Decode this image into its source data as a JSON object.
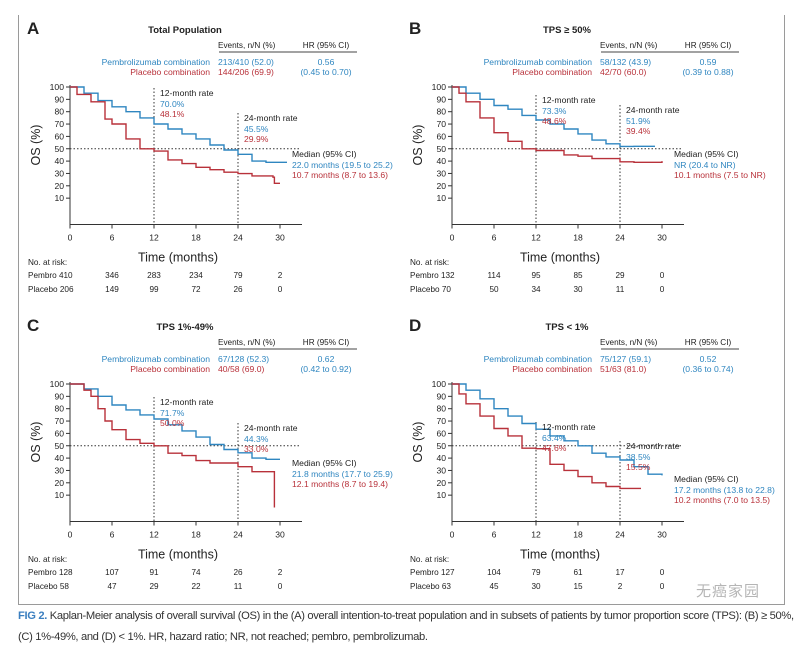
{
  "colors": {
    "pembro": "#2f86c0",
    "placebo": "#b8313a",
    "text": "#222222",
    "fig_label": "#3b7fc0"
  },
  "chart_data": [
    {
      "type": "line",
      "subtype": "kaplan-meier",
      "panel": "A",
      "title": "Total Population",
      "xlabel": "Time (months)",
      "ylabel": "OS (%)",
      "xlim": [
        0,
        30
      ],
      "ylim": [
        0,
        100
      ],
      "xticks": [
        "0",
        "6",
        "12",
        "18",
        "24",
        "30"
      ],
      "yticks": [
        "100",
        "90",
        "80",
        "70",
        "60",
        "50",
        "40",
        "30",
        "20",
        "10"
      ],
      "table_header": {
        "events": "Events, n/N (%)",
        "hr": "HR (95% CI)"
      },
      "series": [
        {
          "name": "Pembrolizumab combination",
          "events": "213/410 (52.0)",
          "hr": "0.56",
          "x": [
            0,
            2,
            4,
            6,
            8,
            10,
            12,
            14,
            16,
            18,
            20,
            22,
            24,
            26,
            28,
            31
          ],
          "y": [
            100,
            95,
            89,
            84,
            80,
            75,
            70,
            66,
            62,
            58,
            53,
            49,
            45.5,
            40,
            39,
            39
          ]
        },
        {
          "name": "Placebo combination",
          "events": "144/206 (69.9)",
          "hr": "(0.45 to 0.70)",
          "x": [
            0,
            1,
            3,
            5,
            6,
            8,
            10,
            12,
            14,
            16,
            18,
            20,
            22,
            24,
            26,
            29,
            29.2,
            30
          ],
          "y": [
            100,
            94,
            88,
            74,
            70,
            58,
            50,
            48.1,
            41,
            38,
            35,
            33,
            31,
            29.9,
            28,
            27,
            22,
            22
          ]
        }
      ],
      "rate12": {
        "label": "12-month rate",
        "pembro": "70.0%",
        "placebo": "48.1%"
      },
      "rate24": {
        "label": "24-month rate",
        "pembro": "45.5%",
        "placebo": "29.9%"
      },
      "median": {
        "label": "Median (95% CI)",
        "pembro": "22.0 months (19.5 to 25.2)",
        "placebo": "10.7 months (8.7 to 13.6)"
      },
      "at_risk": {
        "label": "No. at risk:",
        "pembro_label": "Pembro 410",
        "pembro": [
          "346",
          "283",
          "234",
          "79",
          "2"
        ],
        "placebo_label": "Placebo 206",
        "placebo": [
          "149",
          "99",
          "72",
          "26",
          "0"
        ]
      }
    },
    {
      "type": "line",
      "subtype": "kaplan-meier",
      "panel": "B",
      "title": "TPS ≥ 50%",
      "xlabel": "Time (months)",
      "ylabel": "OS (%)",
      "xlim": [
        0,
        30
      ],
      "ylim": [
        0,
        100
      ],
      "xticks": [
        "0",
        "6",
        "12",
        "18",
        "24",
        "30"
      ],
      "yticks": [
        "100",
        "90",
        "80",
        "70",
        "60",
        "50",
        "40",
        "30",
        "20",
        "10"
      ],
      "table_header": {
        "events": "Events, n/N (%)",
        "hr": "HR (95% CI)"
      },
      "series": [
        {
          "name": "Pembrolizumab combination",
          "events": "58/132 (43.9)",
          "hr": "0.59",
          "x": [
            0,
            2,
            4,
            6,
            8,
            10,
            12,
            14,
            16,
            18,
            20,
            22,
            24,
            26,
            29
          ],
          "y": [
            100,
            95,
            90,
            85,
            82,
            77,
            73.3,
            70,
            66,
            62,
            57,
            54,
            51.9,
            52,
            52
          ]
        },
        {
          "name": "Placebo combination",
          "events": "42/70 (60.0)",
          "hr": "(0.39 to 0.88)",
          "x": [
            0,
            1,
            2,
            4,
            6,
            8,
            10,
            12,
            16,
            18,
            20,
            24,
            26,
            30
          ],
          "y": [
            100,
            95,
            88,
            75,
            63,
            56,
            50,
            48.6,
            45,
            44,
            42,
            39.4,
            39,
            40
          ]
        }
      ],
      "rate12": {
        "label": "12-month rate",
        "pembro": "73.3%",
        "placebo": "48.6%"
      },
      "rate24": {
        "label": "24-month rate",
        "pembro": "51.9%",
        "placebo": "39.4%"
      },
      "median": {
        "label": "Median (95% CI)",
        "pembro": "NR (20.4 to NR)",
        "placebo": "10.1 months (7.5 to NR)"
      },
      "at_risk": {
        "label": "No. at risk:",
        "pembro_label": "Pembro 132",
        "pembro": [
          "114",
          "95",
          "85",
          "29",
          "0"
        ],
        "placebo_label": "Placebo 70",
        "placebo": [
          "50",
          "34",
          "30",
          "11",
          "0"
        ]
      }
    },
    {
      "type": "line",
      "subtype": "kaplan-meier",
      "panel": "C",
      "title": "TPS 1%-49%",
      "xlabel": "Time (months)",
      "ylabel": "OS (%)",
      "xlim": [
        0,
        30
      ],
      "ylim": [
        0,
        100
      ],
      "xticks": [
        "0",
        "6",
        "12",
        "18",
        "24",
        "30"
      ],
      "yticks": [
        "100",
        "90",
        "80",
        "70",
        "60",
        "50",
        "40",
        "30",
        "20",
        "10"
      ],
      "table_header": {
        "events": "Events, n/N (%)",
        "hr": "HR (95% CI)"
      },
      "series": [
        {
          "name": "Pembrolizumab combination",
          "events": "67/128 (52.3)",
          "hr": "0.62",
          "x": [
            0,
            2,
            4,
            6,
            8,
            10,
            12,
            14,
            16,
            18,
            20,
            22,
            24,
            26,
            28,
            30
          ],
          "y": [
            100,
            96,
            90,
            83,
            79,
            75,
            71.7,
            67,
            62,
            57,
            51,
            47,
            44.3,
            40,
            39,
            39
          ]
        },
        {
          "name": "Placebo combination",
          "events": "40/58 (69.0)",
          "hr": "(0.42 to 0.92)",
          "x": [
            0,
            2,
            3,
            4,
            5,
            6,
            8,
            10,
            12,
            14,
            16,
            18,
            20,
            22,
            24,
            26,
            29,
            29.2
          ],
          "y": [
            100,
            95,
            90,
            80,
            70,
            63,
            55,
            52,
            50,
            44,
            42,
            38,
            36,
            36,
            33,
            29,
            29,
            0
          ]
        }
      ],
      "rate12": {
        "label": "12-month rate",
        "pembro": "71.7%",
        "placebo": "50.0%"
      },
      "rate24": {
        "label": "24-month rate",
        "pembro": "44.3%",
        "placebo": "33.0%"
      },
      "median": {
        "label": "Median (95% CI)",
        "pembro": "21.8 months (17.7 to 25.9)",
        "placebo": "12.1 months (8.7 to 19.4)"
      },
      "at_risk": {
        "label": "No. at risk:",
        "pembro_label": "Pembro 128",
        "pembro": [
          "107",
          "91",
          "74",
          "26",
          "2"
        ],
        "placebo_label": "Placebo 58",
        "placebo": [
          "47",
          "29",
          "22",
          "11",
          "0"
        ]
      }
    },
    {
      "type": "line",
      "subtype": "kaplan-meier",
      "panel": "D",
      "title": "TPS < 1%",
      "xlabel": "Time (months)",
      "ylabel": "OS (%)",
      "xlim": [
        0,
        30
      ],
      "ylim": [
        0,
        100
      ],
      "xticks": [
        "0",
        "6",
        "12",
        "18",
        "24",
        "30"
      ],
      "yticks": [
        "100",
        "90",
        "80",
        "70",
        "60",
        "50",
        "40",
        "30",
        "20",
        "10"
      ],
      "table_header": {
        "events": "Events, n/N (%)",
        "hr": "HR (95% CI)"
      },
      "series": [
        {
          "name": "Pembrolizumab combination",
          "events": "75/127 (59.1)",
          "hr": "0.52",
          "x": [
            0,
            2,
            4,
            6,
            8,
            10,
            12,
            14,
            16,
            18,
            20,
            22,
            24,
            26,
            28,
            30
          ],
          "y": [
            100,
            95,
            88,
            80,
            74,
            68,
            63.4,
            58,
            54,
            50,
            44,
            41,
            38.5,
            33,
            27,
            26
          ]
        },
        {
          "name": "Placebo combination",
          "events": "51/63 (81.0)",
          "hr": "(0.36 to 0.74)",
          "x": [
            0,
            1,
            2,
            4,
            6,
            8,
            10,
            12,
            14,
            16,
            18,
            20,
            22,
            24,
            27
          ],
          "y": [
            100,
            92,
            84,
            74,
            64,
            58,
            48,
            47.6,
            35,
            30,
            25,
            20,
            17,
            15.5,
            15.5
          ]
        }
      ],
      "rate12": {
        "label": "12-month rate",
        "pembro": "63.4%",
        "placebo": "47.6%"
      },
      "rate24": {
        "label": "24-month rate",
        "pembro": "38.5%",
        "placebo": "15.5%"
      },
      "median": {
        "label": "Median (95% CI)",
        "pembro": "17.2 months (13.8 to 22.8)",
        "placebo": "10.2 months (7.0 to 13.5)"
      },
      "at_risk": {
        "label": "No. at risk:",
        "pembro_label": "Pembro 127",
        "pembro": [
          "104",
          "79",
          "61",
          "17",
          "0"
        ],
        "placebo_label": "Placebo 63",
        "placebo": [
          "45",
          "30",
          "15",
          "2",
          "0"
        ]
      }
    }
  ],
  "caption": {
    "label": "FIG 2.",
    "text": " Kaplan-Meier analysis of overall survival (OS) in the (A) overall intention-to-treat population and in subsets of patients by tumor proportion score (TPS): (B) ≥ 50%, (C) 1%-49%, and (D) < 1%. HR, hazard ratio; NR, not reached; pembro, pembrolizumab."
  },
  "watermark": "无癌家园"
}
